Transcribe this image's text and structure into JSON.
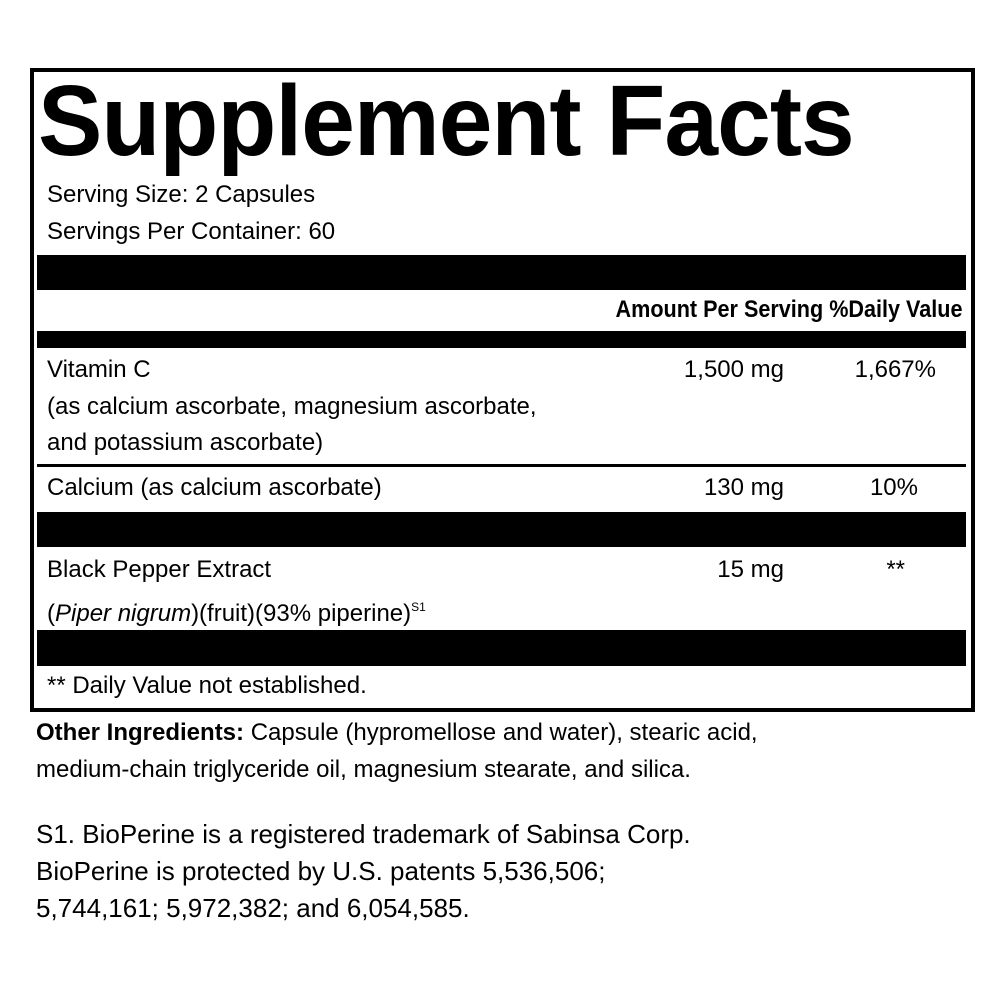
{
  "title": "Supplement Facts",
  "serving_size": "Serving Size: 2 Capsules",
  "servings_per_container": "Servings Per Container: 60",
  "header": {
    "amount": "Amount Per Serving",
    "dv": "%Daily Value"
  },
  "rows": [
    {
      "name": "Vitamin C",
      "sub1": "(as calcium ascorbate, magnesium ascorbate,",
      "sub2": "and potassium ascorbate)",
      "amount": "1,500 mg",
      "dv": "1,667%"
    },
    {
      "name": "Calcium (as calcium ascorbate)",
      "amount": "130 mg",
      "dv": "10%"
    },
    {
      "name": "Black Pepper Extract",
      "sub_open": "(",
      "sub_italic": "Piper nigrum",
      "sub_rest": ")(fruit)(93% piperine)",
      "sub_sup": "S1",
      "amount": "15 mg",
      "dv": "**"
    }
  ],
  "footnote": "** Daily Value not established.",
  "other_ingredients": {
    "label": "Other Ingredients:",
    "line1": " Capsule (hypromellose and water), stearic acid,",
    "line2": "medium-chain triglyceride oil, magnesium stearate, and silica."
  },
  "notes": [
    "S1. BioPerine is a registered trademark of Sabinsa Corp.",
    "BioPerine is protected by U.S. patents 5,536,506;",
    "5,744,161; 5,972,382; and 6,054,585."
  ]
}
